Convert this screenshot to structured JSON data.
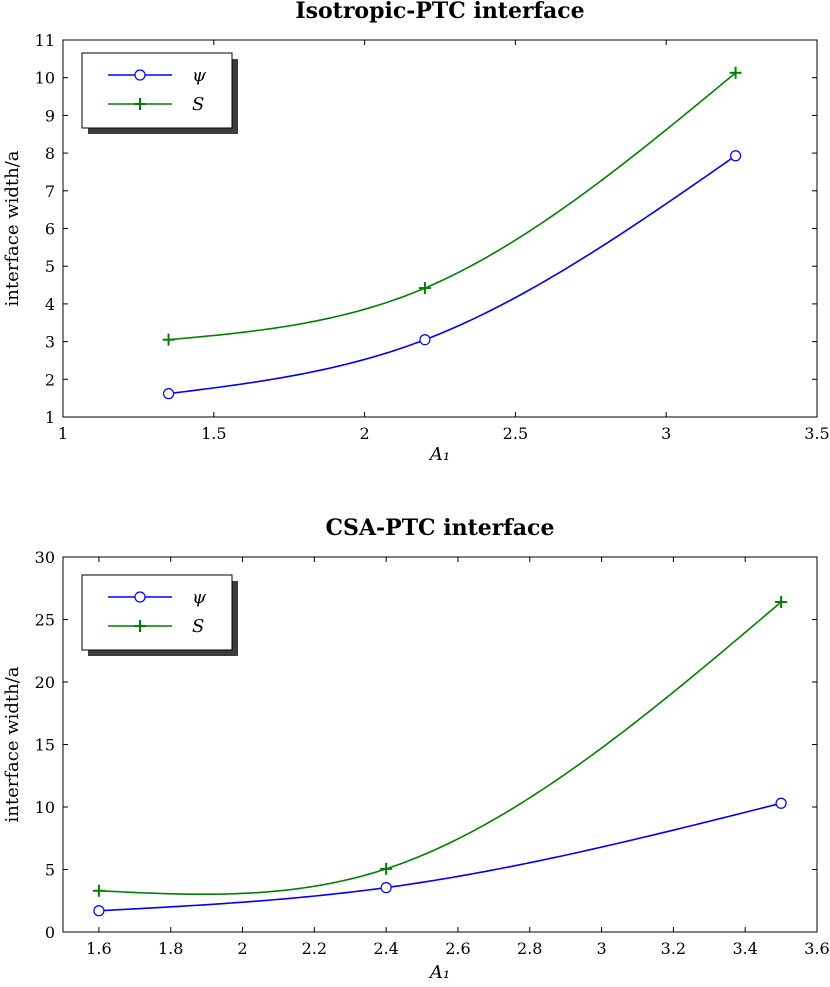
{
  "chart_data": [
    {
      "type": "line",
      "title": "Isotropic-PTC interface",
      "xlabel": "A₁",
      "ylabel": "interface width/a",
      "xlim": [
        1,
        3.5
      ],
      "ylim": [
        1,
        11
      ],
      "xticks": [
        1,
        1.5,
        2,
        2.5,
        3,
        3.5
      ],
      "xtick_labels": [
        "1",
        "1.5",
        "2",
        "2.5",
        "3",
        "3.5"
      ],
      "yticks": [
        1,
        2,
        3,
        4,
        5,
        6,
        7,
        8,
        9,
        10,
        11
      ],
      "ytick_labels": [
        "1",
        "2",
        "3",
        "4",
        "5",
        "6",
        "7",
        "8",
        "9",
        "10",
        "11"
      ],
      "grid": false,
      "legend_position": "top-left",
      "series": [
        {
          "name": "ψ",
          "color": "#0000ff",
          "marker": "circle",
          "x": [
            1.35,
            2.2,
            3.23
          ],
          "y": [
            1.62,
            3.05,
            7.93
          ]
        },
        {
          "name": "S",
          "color": "#008000",
          "marker": "plus",
          "x": [
            1.35,
            2.2,
            3.23
          ],
          "y": [
            3.05,
            4.42,
            10.13
          ]
        }
      ]
    },
    {
      "type": "line",
      "title": "CSA-PTC interface",
      "xlabel": "A₁",
      "ylabel": "interface width/a",
      "xlim": [
        1.5,
        3.6
      ],
      "ylim": [
        0,
        30
      ],
      "xticks": [
        1.6,
        1.8,
        2,
        2.2,
        2.4,
        2.6,
        2.8,
        3,
        3.2,
        3.4,
        3.6
      ],
      "xtick_labels": [
        "1.6",
        "1.8",
        "2",
        "2.2",
        "2.4",
        "2.6",
        "2.8",
        "3",
        "3.2",
        "3.4",
        "3.6"
      ],
      "yticks": [
        0,
        5,
        10,
        15,
        20,
        25,
        30
      ],
      "ytick_labels": [
        "0",
        "5",
        "10",
        "15",
        "20",
        "25",
        "30"
      ],
      "grid": false,
      "legend_position": "top-left",
      "series": [
        {
          "name": "ψ",
          "color": "#0000ff",
          "marker": "circle",
          "x": [
            1.6,
            2.4,
            3.5
          ],
          "y": [
            1.7,
            3.55,
            10.3
          ]
        },
        {
          "name": "S",
          "color": "#008000",
          "marker": "plus",
          "x": [
            1.6,
            2.4,
            3.5
          ],
          "y": [
            3.3,
            5.05,
            26.4
          ]
        }
      ]
    }
  ]
}
